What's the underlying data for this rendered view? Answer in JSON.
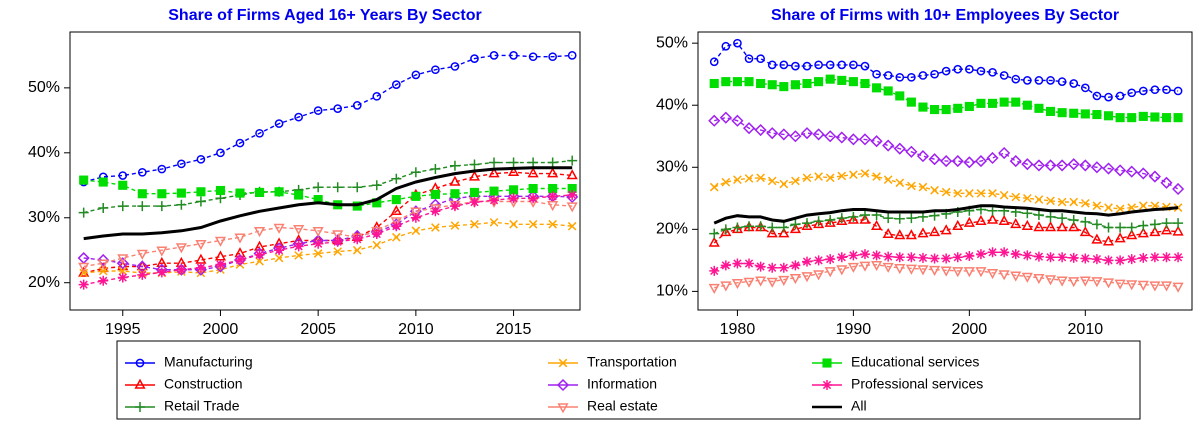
{
  "chart_data": [
    {
      "type": "line",
      "title": "Share of Firms Aged 16+ Years By Sector",
      "legend": "bottom",
      "x": [
        1993,
        1994,
        1995,
        1996,
        1997,
        1998,
        1999,
        2000,
        2001,
        2002,
        2003,
        2004,
        2005,
        2006,
        2007,
        2008,
        2009,
        2010,
        2011,
        2012,
        2013,
        2014,
        2015,
        2016,
        2017,
        2018
      ],
      "xlim": [
        1992.3,
        2018.4
      ],
      "xticks": [
        1995,
        2000,
        2005,
        2010,
        2015
      ],
      "ylim": [
        15.8,
        58.6
      ],
      "yticks": [
        {
          "value": 20,
          "label": "20%"
        },
        {
          "value": 30,
          "label": "30%"
        },
        {
          "value": 40,
          "label": "40%"
        },
        {
          "value": 50,
          "label": "50%"
        }
      ],
      "series": [
        {
          "name": "Manufacturing",
          "color": "#0000ff",
          "marker": "circle",
          "line": "dashed",
          "values": [
            35.5,
            36.3,
            36.5,
            37,
            37.5,
            38.3,
            39,
            40,
            41.5,
            43,
            44.5,
            45.5,
            46.5,
            46.8,
            47.3,
            48.7,
            50.5,
            52,
            52.8,
            53.3,
            54.5,
            55,
            55,
            54.8,
            54.8,
            55
          ]
        },
        {
          "name": "Construction",
          "color": "#ff0000",
          "marker": "triangle",
          "line": "dashed",
          "values": [
            21.5,
            22.2,
            22.5,
            22.5,
            23,
            23,
            23.5,
            24,
            24.5,
            25.5,
            26,
            26.5,
            26.5,
            26.5,
            27,
            28.5,
            31,
            33.5,
            34.5,
            35.5,
            36.3,
            36.8,
            37,
            36.8,
            36.8,
            36.5
          ]
        },
        {
          "name": "Retail Trade",
          "color": "#228b22",
          "marker": "plus",
          "line": "dashed",
          "values": [
            30.8,
            31.5,
            31.8,
            31.8,
            31.8,
            32,
            32.5,
            33,
            33.5,
            34,
            34,
            34.3,
            34.7,
            34.7,
            34.7,
            35,
            36,
            37,
            37.5,
            38,
            38.2,
            38.5,
            38.5,
            38.5,
            38.5,
            38.8
          ]
        },
        {
          "name": "Transportation",
          "color": "#ffa500",
          "marker": "cross",
          "line": "dashed",
          "values": [
            21.5,
            21.8,
            21.8,
            21.5,
            21.5,
            21.7,
            21.5,
            22,
            22.8,
            23.3,
            23.8,
            24.2,
            24.5,
            24.8,
            25,
            25.8,
            27,
            28,
            28.5,
            28.8,
            29,
            29.3,
            29,
            29,
            29,
            28.7
          ]
        },
        {
          "name": "Information",
          "color": "#a020f0",
          "marker": "diamond",
          "line": "dashed",
          "values": [
            23.8,
            23.5,
            23,
            22.5,
            22,
            22,
            22,
            22.5,
            23.5,
            24.5,
            25.3,
            26,
            26.5,
            26.5,
            27.2,
            27.8,
            29,
            31,
            32,
            33,
            33.3,
            33.3,
            33.3,
            33.3,
            33.3,
            33.2
          ]
        },
        {
          "name": "Real estate",
          "color": "#fa8072",
          "marker": "triangle-down",
          "line": "dashed",
          "values": [
            22.5,
            23,
            23.8,
            24.5,
            25,
            25.5,
            26,
            26.5,
            27,
            28,
            28.5,
            28.3,
            28,
            27.5,
            27,
            28,
            29.5,
            31,
            31.5,
            32,
            32.5,
            32.5,
            32.5,
            32.5,
            32,
            31.8
          ]
        },
        {
          "name": "Educational services",
          "color": "#00dd00",
          "marker": "square",
          "line": "dashed",
          "values": [
            35.8,
            35.5,
            35,
            33.7,
            33.7,
            33.8,
            34,
            34.2,
            33.8,
            33.9,
            34,
            33.5,
            32.8,
            32,
            31.8,
            32.3,
            32.8,
            33.3,
            33.6,
            33.7,
            33.9,
            34.1,
            34.3,
            34.5,
            34.5,
            34.5
          ]
        },
        {
          "name": "Professional services",
          "color": "#ff1493",
          "marker": "asterisk",
          "line": "dashed",
          "values": [
            19.7,
            20.3,
            20.8,
            21.2,
            21.6,
            22,
            22.3,
            22.8,
            23.5,
            24.3,
            25,
            25.6,
            26,
            26.3,
            26.7,
            27.5,
            28.7,
            30,
            31,
            31.8,
            32.4,
            32.7,
            33,
            33,
            33.3,
            33.5
          ]
        },
        {
          "name": "All",
          "color": "#000000",
          "marker": "none",
          "line": "solid",
          "values": [
            26.8,
            27.2,
            27.5,
            27.5,
            27.7,
            28,
            28.5,
            29.5,
            30.3,
            31,
            31.5,
            32,
            32.3,
            32,
            32,
            32.8,
            34.5,
            35.5,
            36.2,
            36.8,
            37.2,
            37.5,
            37.6,
            37.7,
            37.7,
            37.7
          ]
        }
      ]
    },
    {
      "type": "line",
      "title": "Share of Firms with 10+ Employees By Sector",
      "x": [
        1978,
        1979,
        1980,
        1981,
        1982,
        1983,
        1984,
        1985,
        1986,
        1987,
        1988,
        1989,
        1990,
        1991,
        1992,
        1993,
        1994,
        1995,
        1996,
        1997,
        1998,
        1999,
        2000,
        2001,
        2002,
        2003,
        2004,
        2005,
        2006,
        2007,
        2008,
        2009,
        2010,
        2011,
        2012,
        2013,
        2014,
        2015,
        2016,
        2017,
        2018
      ],
      "xlim": [
        1976.6,
        2019.2
      ],
      "xticks": [
        1980,
        1990,
        2000,
        2010
      ],
      "ylim": [
        7,
        51.8
      ],
      "yticks": [
        {
          "value": 10,
          "label": "10%"
        },
        {
          "value": 20,
          "label": "20%"
        },
        {
          "value": 30,
          "label": "30%"
        },
        {
          "value": 40,
          "label": "40%"
        },
        {
          "value": 50,
          "label": "50%"
        }
      ],
      "series": [
        {
          "color": "#0000ff",
          "marker": "circle",
          "line": "dashed",
          "values": [
            47,
            49.5,
            50,
            47.5,
            47.5,
            46.5,
            46.5,
            46.3,
            46.3,
            46.5,
            46.5,
            46.5,
            46.5,
            46.3,
            45,
            44.8,
            44.5,
            44.5,
            44.8,
            45,
            45.5,
            45.8,
            45.8,
            45.5,
            45.3,
            44.8,
            44.2,
            44,
            44,
            44,
            43.8,
            43.5,
            42.8,
            41.5,
            41.3,
            41.5,
            42,
            42.3,
            42.5,
            42.5,
            42.3
          ]
        },
        {
          "color": "#ff0000",
          "marker": "triangle",
          "line": "dashed",
          "values": [
            17.8,
            19.5,
            20,
            20.3,
            20.3,
            19.3,
            19.3,
            20,
            20.5,
            20.8,
            21,
            21.3,
            21.5,
            21.5,
            20.5,
            19.2,
            19,
            19,
            19.3,
            19.5,
            19.8,
            20.5,
            21,
            21.3,
            21.5,
            21.3,
            20.8,
            20.5,
            20.3,
            20.3,
            20.3,
            20.3,
            19.5,
            18.3,
            18,
            18.5,
            19,
            19.3,
            19.5,
            19.8,
            19.6
          ]
        },
        {
          "color": "#228b22",
          "marker": "plus",
          "line": "dashed",
          "values": [
            19.3,
            20,
            20.3,
            20.5,
            20.5,
            20.3,
            20.3,
            20.8,
            21,
            21.3,
            21.5,
            21.8,
            22,
            22.3,
            22.3,
            21.8,
            21.7,
            21.8,
            22,
            22.2,
            22.5,
            22.8,
            23,
            23.2,
            23,
            23,
            22.8,
            22.6,
            22.3,
            22,
            21.8,
            21.5,
            21.2,
            20.8,
            20.3,
            20.3,
            20.3,
            20.6,
            20.8,
            21,
            21
          ]
        },
        {
          "color": "#ffa500",
          "marker": "cross",
          "line": "dashed",
          "values": [
            26.8,
            27.6,
            28,
            28.2,
            28.3,
            27.8,
            27.3,
            27.8,
            28.3,
            28.5,
            28.3,
            28.6,
            28.8,
            29,
            28.5,
            28,
            27.5,
            27,
            26.8,
            26.3,
            26,
            25.8,
            25.8,
            25.8,
            25.8,
            25.5,
            25.2,
            25,
            24.8,
            24.6,
            24.4,
            24.4,
            24.2,
            23.8,
            23.5,
            23.3,
            23.5,
            23.8,
            23.8,
            23.6,
            23.5
          ]
        },
        {
          "color": "#a020f0",
          "marker": "diamond",
          "line": "dashed",
          "values": [
            37.5,
            38,
            37.5,
            36.3,
            36,
            35.5,
            35.3,
            35,
            35.5,
            35.3,
            35,
            34.8,
            34.5,
            34.5,
            34.2,
            33.5,
            33,
            32.5,
            31.8,
            31.3,
            31,
            31,
            30.8,
            31,
            31.5,
            32.3,
            31,
            30.5,
            30.3,
            30.3,
            30.3,
            30.5,
            30.3,
            30,
            29.8,
            29.5,
            29.3,
            29,
            28.5,
            27.5,
            26.5
          ]
        },
        {
          "color": "#fa8072",
          "marker": "triangle-down",
          "line": "dashed",
          "values": [
            10.6,
            11,
            11.4,
            11.6,
            11.8,
            11.6,
            11.9,
            12.2,
            12.5,
            12.8,
            13.3,
            13.6,
            14,
            14.2,
            14.3,
            14,
            13.8,
            13.7,
            13.6,
            13.5,
            13.4,
            13.3,
            13.3,
            13.3,
            13,
            12.8,
            12.6,
            12.4,
            12.2,
            12,
            11.8,
            11.7,
            11.8,
            11.7,
            11.5,
            11.3,
            11.2,
            11.1,
            11,
            11,
            10.8
          ]
        },
        {
          "color": "#00dd00",
          "marker": "square",
          "line": "dashed",
          "values": [
            43.5,
            43.8,
            43.8,
            43.8,
            43.5,
            43.3,
            43,
            43.3,
            43.5,
            43.8,
            44.2,
            44,
            43.8,
            43.5,
            42.8,
            42.3,
            41.5,
            40.5,
            39.7,
            39.3,
            39.3,
            39.5,
            39.8,
            40.3,
            40.3,
            40.5,
            40.5,
            40,
            39.5,
            39,
            38.8,
            38.7,
            38.6,
            38.5,
            38.3,
            38,
            38,
            38.2,
            38.1,
            38,
            38
          ]
        },
        {
          "color": "#ff1493",
          "marker": "asterisk",
          "line": "dashed",
          "values": [
            13.3,
            14.2,
            14.5,
            14.5,
            14,
            13.8,
            13.8,
            14.2,
            14.8,
            15,
            15.2,
            15.5,
            15.8,
            16,
            15.8,
            15.6,
            15.5,
            15.5,
            15.4,
            15.3,
            15.3,
            15.5,
            15.7,
            16,
            16.3,
            16.3,
            16,
            15.8,
            15.6,
            15.5,
            15.5,
            15.4,
            15.3,
            15.2,
            15,
            15,
            15.2,
            15.4,
            15.5,
            15.5,
            15.5
          ]
        },
        {
          "color": "#000000",
          "marker": "none",
          "line": "solid",
          "values": [
            21,
            21.8,
            22.2,
            22,
            22,
            21.5,
            21.3,
            21.8,
            22.3,
            22.5,
            22.7,
            23,
            23.2,
            23.2,
            23,
            22.8,
            22.8,
            22.8,
            22.8,
            23,
            23,
            23.2,
            23.5,
            23.8,
            23.8,
            23.6,
            23.5,
            23.4,
            23.2,
            23,
            23,
            22.8,
            22.6,
            22.5,
            22.3,
            22.5,
            22.8,
            23,
            23.2,
            23.3,
            23.5
          ]
        }
      ]
    }
  ]
}
